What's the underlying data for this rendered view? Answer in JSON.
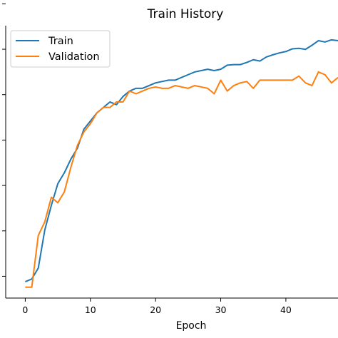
{
  "chart_data": {
    "type": "line",
    "title": "Train History",
    "xlabel": "Epoch",
    "ylabel": "",
    "xlim": [
      -3,
      48
    ],
    "ylim": [
      0.0,
      1.0
    ],
    "x_ticks": [
      0,
      10,
      20,
      30,
      40
    ],
    "x_tick_labels": [
      "0",
      "10",
      "20",
      "30",
      "40"
    ],
    "y_tick_count": 7,
    "grid": false,
    "legend_position": "top-left",
    "series": [
      {
        "name": "Train",
        "color": "#1f77b4",
        "x": [
          0,
          1,
          2,
          3,
          4,
          5,
          6,
          7,
          8,
          9,
          10,
          11,
          12,
          13,
          14,
          15,
          16,
          17,
          18,
          19,
          20,
          21,
          22,
          23,
          24,
          25,
          26,
          27,
          28,
          29,
          30,
          31,
          32,
          33,
          34,
          35,
          36,
          37,
          38,
          39,
          40,
          41,
          42,
          43,
          44,
          45,
          46,
          47,
          48
        ],
        "values": [
          0.06,
          0.07,
          0.11,
          0.25,
          0.34,
          0.42,
          0.46,
          0.51,
          0.55,
          0.62,
          0.65,
          0.68,
          0.7,
          0.72,
          0.71,
          0.74,
          0.76,
          0.77,
          0.77,
          0.78,
          0.79,
          0.795,
          0.8,
          0.8,
          0.81,
          0.82,
          0.83,
          0.835,
          0.84,
          0.835,
          0.84,
          0.855,
          0.857,
          0.857,
          0.865,
          0.875,
          0.87,
          0.885,
          0.893,
          0.9,
          0.905,
          0.915,
          0.917,
          0.913,
          0.928,
          0.945,
          0.94,
          0.948,
          0.945
        ]
      },
      {
        "name": "Validation",
        "color": "#ff7f0e",
        "x": [
          0,
          1,
          2,
          3,
          4,
          5,
          6,
          7,
          8,
          9,
          10,
          11,
          12,
          13,
          14,
          15,
          16,
          17,
          18,
          19,
          20,
          21,
          22,
          23,
          24,
          25,
          26,
          27,
          28,
          29,
          30,
          31,
          32,
          33,
          34,
          35,
          36,
          37,
          38,
          39,
          40,
          41,
          42,
          43,
          44,
          45,
          46,
          47,
          48
        ],
        "values": [
          0.04,
          0.04,
          0.23,
          0.28,
          0.37,
          0.35,
          0.39,
          0.48,
          0.56,
          0.61,
          0.64,
          0.68,
          0.7,
          0.7,
          0.72,
          0.72,
          0.76,
          0.75,
          0.76,
          0.77,
          0.775,
          0.77,
          0.77,
          0.78,
          0.775,
          0.77,
          0.78,
          0.775,
          0.77,
          0.75,
          0.8,
          0.76,
          0.78,
          0.79,
          0.795,
          0.77,
          0.8,
          0.8,
          0.8,
          0.8,
          0.8,
          0.8,
          0.815,
          0.79,
          0.78,
          0.83,
          0.82,
          0.79,
          0.81
        ]
      }
    ]
  }
}
